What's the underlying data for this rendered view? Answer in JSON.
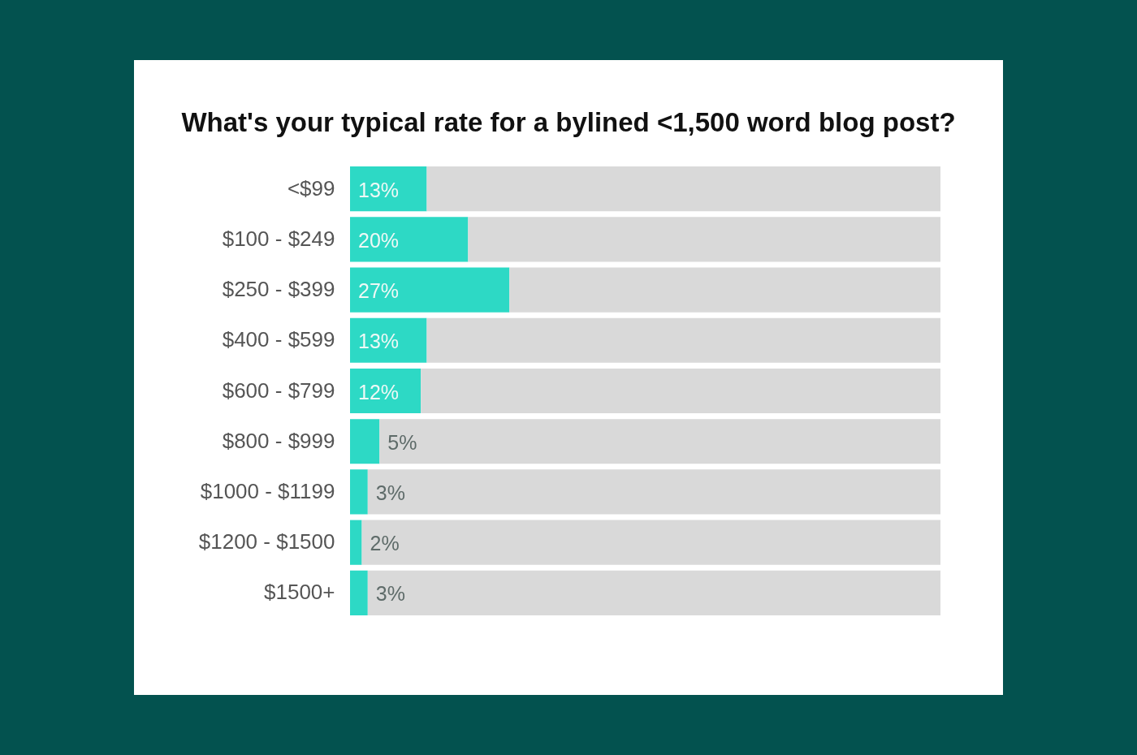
{
  "chart_data": {
    "type": "bar",
    "orientation": "horizontal",
    "stacked": true,
    "title": "What's your typical rate for a bylined <1,500 word blog post?",
    "categories": [
      "<$99",
      "$100 - $249",
      "$250 - $399",
      "$400 - $599",
      "$600 - $799",
      "$800 - $999",
      "$1000 - $1199",
      "$1200 - $1500",
      "$1500+"
    ],
    "series": [
      {
        "color": "#2dd9c5",
        "values": [
          13,
          20,
          27,
          13,
          12,
          5,
          3,
          2,
          3
        ],
        "value_labels": [
          "13%",
          "20%",
          "27%",
          "13%",
          "12%",
          "5%",
          "3%",
          "2%",
          "3%"
        ]
      },
      {
        "color": "#d9d9d9",
        "values": [
          87,
          80,
          73,
          87,
          88,
          95,
          97,
          98,
          97
        ]
      }
    ],
    "xlim": [
      0,
      100
    ],
    "tick_labels": "y"
  }
}
